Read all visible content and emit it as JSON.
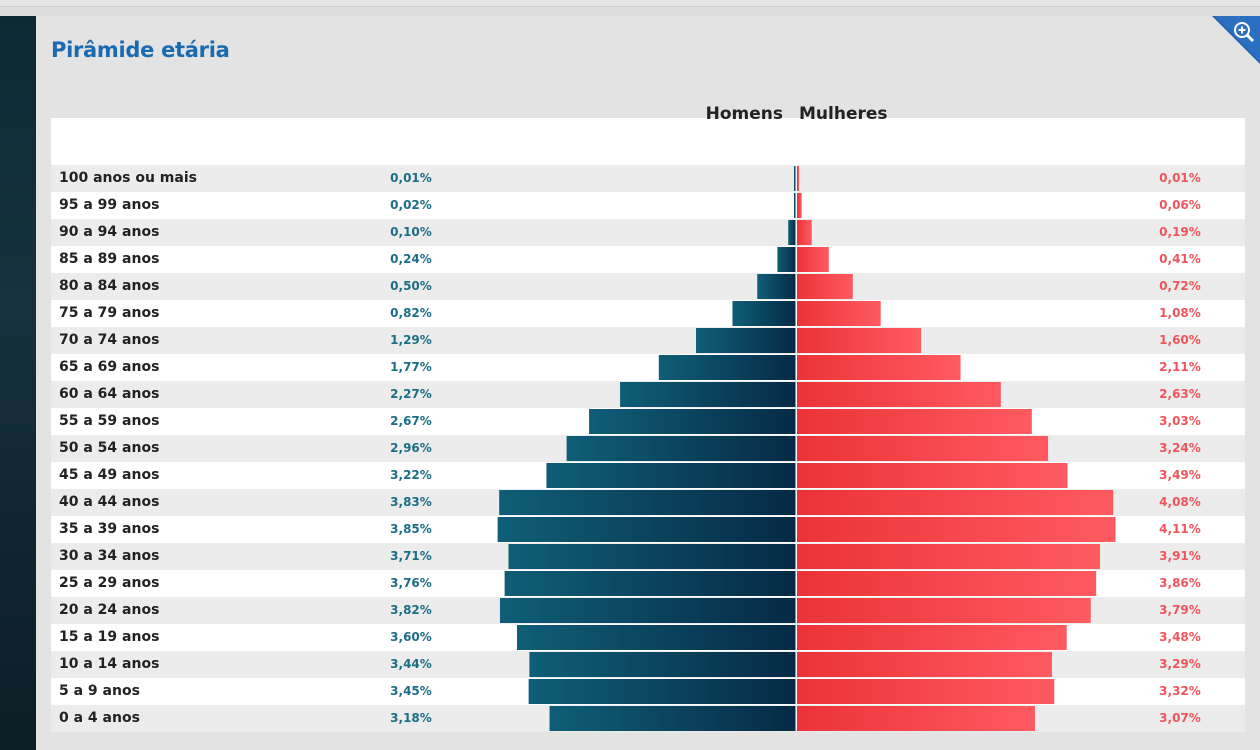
{
  "title": "Pirâmide etária",
  "zoom_icon": "zoom-in-icon",
  "colors": {
    "male_dark": "#062a45",
    "male_light": "#0f5e77",
    "female_light": "#ff5a61",
    "female_dark": "#ea3338",
    "male_text": "#1b6e86",
    "female_text": "#f0555c",
    "title": "#1a6ab0"
  },
  "chart_data": {
    "type": "bar",
    "orientation": "horizontal-diverging",
    "series_labels": {
      "male": "Homens",
      "female": "Mulheres"
    },
    "categories": [
      "100 anos ou mais",
      "95 a 99 anos",
      "90 a 94 anos",
      "85 a 89 anos",
      "80 a 84 anos",
      "75 a 79 anos",
      "70 a 74 anos",
      "65 a 69 anos",
      "60 a 64 anos",
      "55 a 59 anos",
      "50 a 54 anos",
      "45 a 49 anos",
      "40 a 44 anos",
      "35 a 39 anos",
      "30 a 34 anos",
      "25 a 29 anos",
      "20 a 24 anos",
      "15 a 19 anos",
      "10 a 14 anos",
      "5 a 9 anos",
      "0 a 4 anos"
    ],
    "series": [
      {
        "name": "Homens",
        "values": [
          0.01,
          0.02,
          0.1,
          0.24,
          0.5,
          0.82,
          1.29,
          1.77,
          2.27,
          2.67,
          2.96,
          3.22,
          3.83,
          3.85,
          3.71,
          3.76,
          3.82,
          3.6,
          3.44,
          3.45,
          3.18
        ]
      },
      {
        "name": "Mulheres",
        "values": [
          0.01,
          0.06,
          0.19,
          0.41,
          0.72,
          1.08,
          1.6,
          2.11,
          2.63,
          3.03,
          3.24,
          3.49,
          4.08,
          4.11,
          3.91,
          3.86,
          3.79,
          3.48,
          3.29,
          3.32,
          3.07
        ]
      }
    ],
    "labels_male": [
      "0,01%",
      "0,02%",
      "0,10%",
      "0,24%",
      "0,50%",
      "0,82%",
      "1,29%",
      "1,77%",
      "2,27%",
      "2,67%",
      "2,96%",
      "3,22%",
      "3,83%",
      "3,85%",
      "3,71%",
      "3,76%",
      "3,82%",
      "3,60%",
      "3,44%",
      "3,45%",
      "3,18%"
    ],
    "labels_female": [
      "0,01%",
      "0,06%",
      "0,19%",
      "0,41%",
      "0,72%",
      "1,08%",
      "1,60%",
      "2,11%",
      "2,63%",
      "3,03%",
      "3,24%",
      "3,49%",
      "4,08%",
      "4,11%",
      "3,91%",
      "3,86%",
      "3,79%",
      "3,48%",
      "3,29%",
      "3,32%",
      "3,07%"
    ],
    "grid": false,
    "legend": "top-center"
  }
}
